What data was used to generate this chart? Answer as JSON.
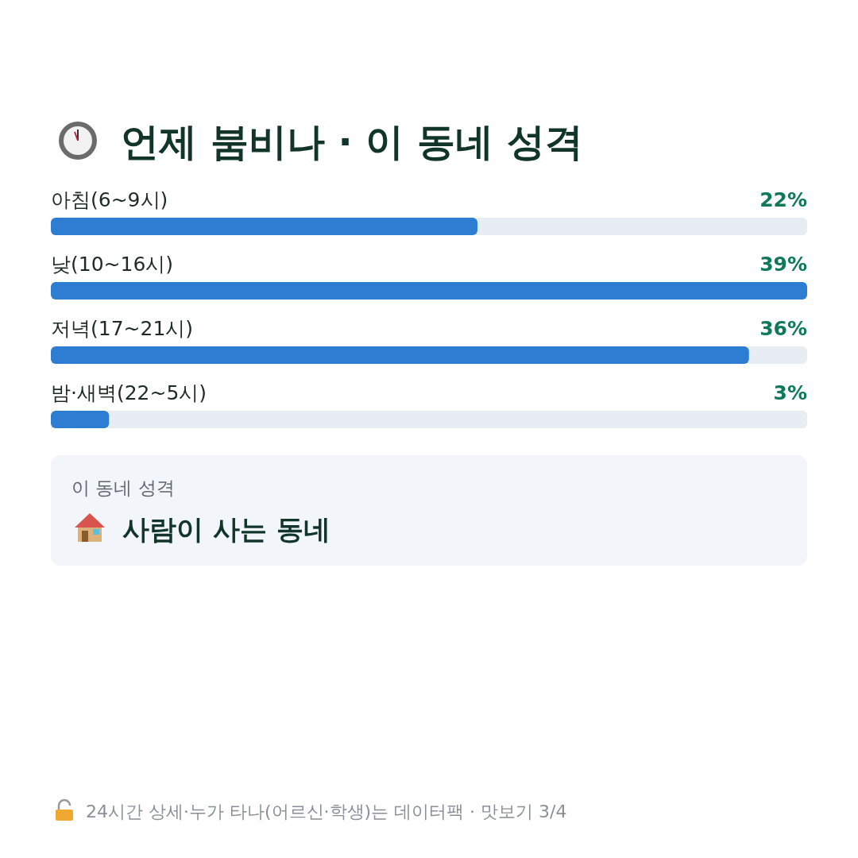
{
  "chart_data": {
    "type": "bar",
    "orientation": "horizontal",
    "title": "언제 붐비나 · 이 동네 성격",
    "categories": [
      "아침(6~9시)",
      "낮(10~16시)",
      "저녁(17~21시)",
      "밤·새벽(22~5시)"
    ],
    "values": [
      22,
      39,
      36,
      3
    ],
    "value_labels": [
      "22%",
      "39%",
      "36%",
      "3%"
    ],
    "color": "#2d7dd2",
    "annotations": [
      "이 동네 성격",
      "사람이 사는 동네",
      "24시간 상세·누가 타나(어르신·학생)는 데이터팩 · 맛보기 3/4"
    ]
  }
}
